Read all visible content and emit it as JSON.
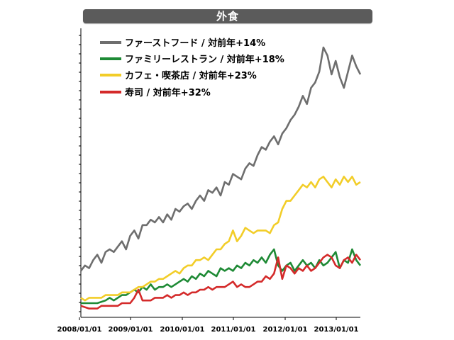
{
  "chart_data": {
    "type": "line",
    "title": "外食",
    "xlabel": "",
    "ylabel": "",
    "x_ticks": [
      "2008/01/01",
      "2009/01/01",
      "2010/01/01",
      "2011/01/01",
      "2012/01/01",
      "2013/01/01"
    ],
    "x_range": [
      "2008-01",
      "2013-09"
    ],
    "y_range": [
      0,
      100
    ],
    "grid": false,
    "legend_position": "top-left",
    "series": [
      {
        "name": "ファーストフード / 対前年+14%",
        "color": "#6e6e6e",
        "points": [
          [
            0,
            12
          ],
          [
            2,
            14
          ],
          [
            4,
            13
          ],
          [
            6,
            16
          ],
          [
            8,
            18
          ],
          [
            10,
            15
          ],
          [
            12,
            19
          ],
          [
            14,
            20
          ],
          [
            16,
            19
          ],
          [
            18,
            21
          ],
          [
            20,
            23
          ],
          [
            22,
            20
          ],
          [
            24,
            25
          ],
          [
            26,
            27
          ],
          [
            28,
            24
          ],
          [
            30,
            29
          ],
          [
            32,
            29
          ],
          [
            34,
            31
          ],
          [
            36,
            30
          ],
          [
            38,
            32
          ],
          [
            40,
            30
          ],
          [
            42,
            33
          ],
          [
            44,
            31
          ],
          [
            46,
            35
          ],
          [
            48,
            34
          ],
          [
            50,
            36
          ],
          [
            52,
            37
          ],
          [
            54,
            35
          ],
          [
            56,
            38
          ],
          [
            58,
            40
          ],
          [
            60,
            38
          ],
          [
            62,
            42
          ],
          [
            64,
            41
          ],
          [
            66,
            43
          ],
          [
            68,
            40
          ],
          [
            70,
            45
          ],
          [
            72,
            44
          ],
          [
            74,
            48
          ],
          [
            76,
            47
          ],
          [
            78,
            46
          ],
          [
            80,
            50
          ],
          [
            82,
            52
          ],
          [
            84,
            51
          ],
          [
            86,
            55
          ],
          [
            88,
            58
          ],
          [
            90,
            57
          ],
          [
            92,
            60
          ],
          [
            94,
            62
          ],
          [
            96,
            59
          ],
          [
            98,
            63
          ],
          [
            100,
            65
          ],
          [
            102,
            68
          ],
          [
            104,
            70
          ],
          [
            106,
            73
          ],
          [
            108,
            77
          ],
          [
            110,
            74
          ],
          [
            112,
            80
          ],
          [
            114,
            82
          ],
          [
            116,
            86
          ],
          [
            118,
            95
          ],
          [
            120,
            92
          ],
          [
            122,
            85
          ],
          [
            124,
            90
          ],
          [
            126,
            84
          ],
          [
            128,
            80
          ],
          [
            130,
            86
          ],
          [
            132,
            92
          ],
          [
            134,
            88
          ],
          [
            136,
            85
          ]
        ]
      },
      {
        "name": "ファミリーレストラン / 対前年+18%",
        "color": "#1e8a35",
        "points": [
          [
            0,
            0
          ],
          [
            4,
            0
          ],
          [
            8,
            0
          ],
          [
            12,
            1
          ],
          [
            14,
            2
          ],
          [
            16,
            1
          ],
          [
            18,
            2
          ],
          [
            20,
            3
          ],
          [
            22,
            3
          ],
          [
            24,
            4
          ],
          [
            26,
            5
          ],
          [
            28,
            4
          ],
          [
            30,
            6
          ],
          [
            32,
            5
          ],
          [
            34,
            7
          ],
          [
            36,
            5
          ],
          [
            38,
            6
          ],
          [
            40,
            6
          ],
          [
            42,
            7
          ],
          [
            44,
            6
          ],
          [
            46,
            7
          ],
          [
            48,
            8
          ],
          [
            50,
            9
          ],
          [
            52,
            8
          ],
          [
            54,
            10
          ],
          [
            56,
            9
          ],
          [
            58,
            11
          ],
          [
            60,
            10
          ],
          [
            62,
            12
          ],
          [
            64,
            11
          ],
          [
            66,
            10
          ],
          [
            68,
            13
          ],
          [
            70,
            12
          ],
          [
            72,
            13
          ],
          [
            74,
            12
          ],
          [
            76,
            14
          ],
          [
            78,
            13
          ],
          [
            80,
            15
          ],
          [
            82,
            14
          ],
          [
            84,
            16
          ],
          [
            86,
            15
          ],
          [
            88,
            17
          ],
          [
            90,
            15
          ],
          [
            92,
            18
          ],
          [
            94,
            20
          ],
          [
            96,
            14
          ],
          [
            98,
            12
          ],
          [
            100,
            14
          ],
          [
            102,
            15
          ],
          [
            104,
            12
          ],
          [
            106,
            14
          ],
          [
            108,
            16
          ],
          [
            110,
            14
          ],
          [
            112,
            15
          ],
          [
            114,
            13
          ],
          [
            116,
            16
          ],
          [
            118,
            14
          ],
          [
            120,
            15
          ],
          [
            122,
            17
          ],
          [
            124,
            19
          ],
          [
            126,
            13
          ],
          [
            128,
            16
          ],
          [
            130,
            15
          ],
          [
            132,
            20
          ],
          [
            134,
            16
          ],
          [
            136,
            14
          ]
        ]
      },
      {
        "name": "カフェ・喫茶店 / 対前年+23%",
        "color": "#f2cd28",
        "points": [
          [
            0,
            2
          ],
          [
            2,
            1
          ],
          [
            4,
            2
          ],
          [
            6,
            2
          ],
          [
            8,
            2
          ],
          [
            10,
            2
          ],
          [
            12,
            3
          ],
          [
            14,
            3
          ],
          [
            16,
            3
          ],
          [
            18,
            3
          ],
          [
            20,
            4
          ],
          [
            22,
            4
          ],
          [
            24,
            4
          ],
          [
            26,
            5
          ],
          [
            28,
            6
          ],
          [
            30,
            6
          ],
          [
            32,
            7
          ],
          [
            34,
            8
          ],
          [
            36,
            8
          ],
          [
            38,
            9
          ],
          [
            40,
            9
          ],
          [
            42,
            10
          ],
          [
            44,
            11
          ],
          [
            46,
            12
          ],
          [
            48,
            11
          ],
          [
            50,
            13
          ],
          [
            52,
            14
          ],
          [
            54,
            14
          ],
          [
            56,
            16
          ],
          [
            58,
            16
          ],
          [
            60,
            17
          ],
          [
            62,
            16
          ],
          [
            64,
            18
          ],
          [
            66,
            20
          ],
          [
            68,
            20
          ],
          [
            70,
            22
          ],
          [
            72,
            23
          ],
          [
            74,
            27
          ],
          [
            76,
            23
          ],
          [
            78,
            25
          ],
          [
            80,
            28
          ],
          [
            82,
            27
          ],
          [
            84,
            26
          ],
          [
            86,
            27
          ],
          [
            88,
            27
          ],
          [
            90,
            27
          ],
          [
            92,
            26
          ],
          [
            94,
            29
          ],
          [
            96,
            30
          ],
          [
            98,
            35
          ],
          [
            100,
            38
          ],
          [
            102,
            38
          ],
          [
            104,
            40
          ],
          [
            106,
            42
          ],
          [
            108,
            44
          ],
          [
            110,
            43
          ],
          [
            112,
            45
          ],
          [
            114,
            43
          ],
          [
            116,
            46
          ],
          [
            118,
            47
          ],
          [
            120,
            45
          ],
          [
            122,
            43
          ],
          [
            124,
            46
          ],
          [
            126,
            44
          ],
          [
            128,
            47
          ],
          [
            130,
            45
          ],
          [
            132,
            47
          ],
          [
            134,
            44
          ],
          [
            136,
            45
          ]
        ]
      },
      {
        "name": "寿司 / 対前年+32%",
        "color": "#d42a2a",
        "points": [
          [
            0,
            -1
          ],
          [
            4,
            -2
          ],
          [
            8,
            -2
          ],
          [
            10,
            -1
          ],
          [
            12,
            -1
          ],
          [
            14,
            -1
          ],
          [
            16,
            -1
          ],
          [
            18,
            -1
          ],
          [
            20,
            0
          ],
          [
            22,
            0
          ],
          [
            24,
            0
          ],
          [
            26,
            2
          ],
          [
            28,
            5
          ],
          [
            30,
            1
          ],
          [
            32,
            1
          ],
          [
            34,
            1
          ],
          [
            36,
            2
          ],
          [
            38,
            2
          ],
          [
            40,
            2
          ],
          [
            42,
            3
          ],
          [
            44,
            2
          ],
          [
            46,
            3
          ],
          [
            48,
            3
          ],
          [
            50,
            4
          ],
          [
            52,
            3
          ],
          [
            54,
            4
          ],
          [
            56,
            4
          ],
          [
            58,
            5
          ],
          [
            60,
            5
          ],
          [
            62,
            6
          ],
          [
            64,
            5
          ],
          [
            66,
            6
          ],
          [
            68,
            6
          ],
          [
            70,
            6
          ],
          [
            72,
            7
          ],
          [
            74,
            8
          ],
          [
            76,
            6
          ],
          [
            78,
            7
          ],
          [
            80,
            6
          ],
          [
            82,
            6
          ],
          [
            84,
            7
          ],
          [
            86,
            8
          ],
          [
            88,
            8
          ],
          [
            90,
            10
          ],
          [
            92,
            9
          ],
          [
            94,
            11
          ],
          [
            96,
            17
          ],
          [
            98,
            9
          ],
          [
            100,
            14
          ],
          [
            102,
            13
          ],
          [
            104,
            11
          ],
          [
            106,
            13
          ],
          [
            108,
            12
          ],
          [
            110,
            14
          ],
          [
            112,
            12
          ],
          [
            114,
            13
          ],
          [
            116,
            15
          ],
          [
            118,
            17
          ],
          [
            120,
            18
          ],
          [
            122,
            17
          ],
          [
            124,
            14
          ],
          [
            126,
            13
          ],
          [
            128,
            16
          ],
          [
            130,
            17
          ],
          [
            132,
            15
          ],
          [
            134,
            18
          ],
          [
            136,
            16
          ]
        ]
      }
    ]
  }
}
